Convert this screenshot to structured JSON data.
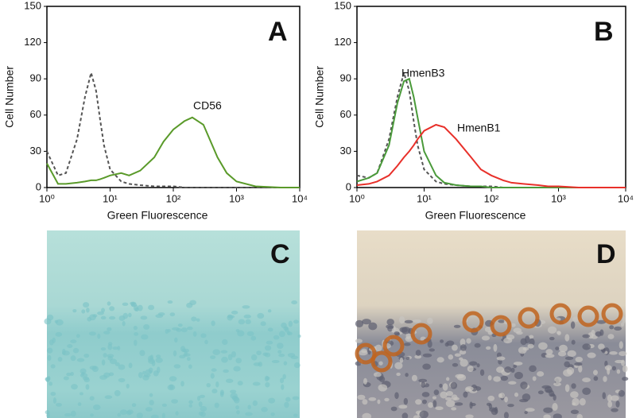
{
  "chart_data": [
    {
      "type": "line",
      "panel_label": "A",
      "xlabel": "Green Fluorescence",
      "ylabel": "Cell Number",
      "log_x": true,
      "xlim": [
        1,
        10000
      ],
      "ylim": [
        0,
        150
      ],
      "xticks": [
        {
          "value": 1,
          "label": "10⁰"
        },
        {
          "value": 10,
          "label": "10¹"
        },
        {
          "value": 100,
          "label": "10²"
        },
        {
          "value": 1000,
          "label": "10³"
        },
        {
          "value": 10000,
          "label": "10⁴"
        }
      ],
      "yticks": [
        0,
        30,
        60,
        90,
        120,
        150
      ],
      "x": [
        1,
        1.5,
        2,
        3,
        4,
        5,
        6,
        7,
        8,
        10,
        15,
        20,
        30,
        50,
        70,
        100,
        150,
        200,
        300,
        500,
        700,
        1000,
        2000,
        5000,
        10000
      ],
      "series": [
        {
          "color": "#555555",
          "dash": true,
          "values": [
            30,
            10,
            12,
            40,
            75,
            95,
            80,
            55,
            35,
            15,
            5,
            3,
            2,
            1,
            1,
            1,
            0,
            0,
            0,
            0,
            0,
            0,
            0,
            0,
            0
          ]
        },
        {
          "name": "CD56",
          "color": "#5a9a2a",
          "dash": false,
          "values": [
            20,
            3,
            3,
            4,
            5,
            6,
            6,
            7,
            8,
            10,
            12,
            10,
            14,
            25,
            38,
            48,
            55,
            58,
            52,
            25,
            12,
            5,
            1,
            0,
            0
          ]
        }
      ]
    },
    {
      "type": "line",
      "panel_label": "B",
      "xlabel": "Green Fluorescence",
      "ylabel": "Cell Number",
      "log_x": true,
      "xlim": [
        1,
        10000
      ],
      "ylim": [
        0,
        150
      ],
      "xticks": [
        {
          "value": 1,
          "label": "10⁰"
        },
        {
          "value": 10,
          "label": "10¹"
        },
        {
          "value": 100,
          "label": "10²"
        },
        {
          "value": 1000,
          "label": "10³"
        },
        {
          "value": 10000,
          "label": "10⁴"
        }
      ],
      "yticks": [
        0,
        30,
        60,
        90,
        120,
        150
      ],
      "x": [
        1,
        1.5,
        2,
        3,
        4,
        5,
        6,
        7,
        8,
        10,
        15,
        20,
        30,
        50,
        70,
        100,
        150,
        200,
        300,
        500,
        700,
        1000,
        2000,
        5000,
        10000
      ],
      "series": [
        {
          "color": "#555555",
          "dash": true,
          "values": [
            10,
            8,
            12,
            40,
            75,
            95,
            80,
            55,
            35,
            15,
            5,
            3,
            2,
            1,
            1,
            1,
            0,
            0,
            0,
            0,
            0,
            0,
            0,
            0,
            0
          ]
        },
        {
          "name": "HmenB3",
          "color": "#4a9a3a",
          "dash": false,
          "values": [
            5,
            8,
            12,
            35,
            70,
            88,
            90,
            75,
            58,
            30,
            10,
            4,
            2,
            1,
            1,
            0,
            0,
            0,
            0,
            0,
            0,
            0,
            0,
            0,
            0
          ]
        },
        {
          "name": "HmenB1",
          "color": "#e8302a",
          "dash": false,
          "values": [
            2,
            3,
            5,
            10,
            18,
            25,
            30,
            35,
            40,
            47,
            52,
            50,
            40,
            25,
            15,
            10,
            6,
            4,
            3,
            2,
            1,
            1,
            0,
            0,
            0
          ]
        }
      ]
    }
  ],
  "panels": [
    {
      "label": "C"
    },
    {
      "label": "D"
    }
  ]
}
